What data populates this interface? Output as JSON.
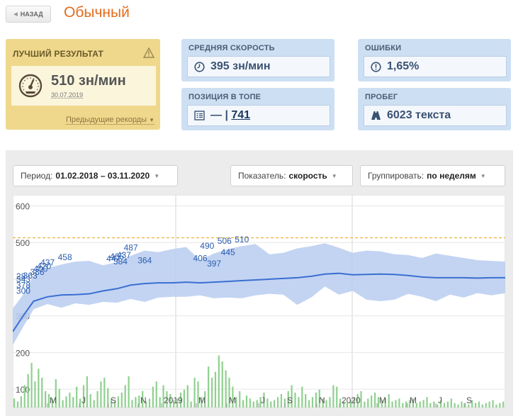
{
  "header": {
    "back_label": "НАЗАД",
    "title": "Обычный"
  },
  "best": {
    "title": "ЛУЧШИЙ РЕЗУЛЬТАТ",
    "value": "510 зн/мин",
    "date": "30.07.2019",
    "prev_link": "Предыдущие рекорды",
    "icon": "speedometer-icon",
    "warn_icon": "warning-icon"
  },
  "stats": {
    "avg_speed": {
      "title": "СРЕДНЯЯ СКОРОСТЬ",
      "value": "395 зн/мин",
      "icon": "clock-icon"
    },
    "errors": {
      "title": "ОШИБКИ",
      "value": "1,65%",
      "icon": "alert-circle-icon"
    },
    "rank": {
      "title": "ПОЗИЦИЯ В ТОПЕ",
      "prefix": "— |",
      "value": "741",
      "icon": "list-icon"
    },
    "mileage": {
      "title": "ПРОБЕГ",
      "value": "6023 текста",
      "icon": "road-icon"
    }
  },
  "controls": {
    "period_label": "Период:",
    "period_value": "01.02.2018 – 03.11.2020",
    "metric_label": "Показатель:",
    "metric_value": "скорость",
    "group_label": "Группировать:",
    "group_value": "по неделям"
  },
  "colors": {
    "accent": "#e36c1e",
    "line": "#3a6fd0",
    "band": "#b9cdf0",
    "bars": "#8fd08f",
    "record": "#e9b23e"
  },
  "chart_data": {
    "type": "line",
    "y_ticks": [
      100,
      200,
      300,
      400,
      500,
      600
    ],
    "y_tick_labels": [
      "100",
      "200",
      "300",
      "",
      "500",
      "600"
    ],
    "ylim": [
      50,
      630
    ],
    "x_ticks": [
      "M",
      "J",
      "S",
      "N",
      "2019",
      "M",
      "M",
      "J",
      "S",
      "N",
      "2020",
      "M",
      "M",
      "J",
      "S"
    ],
    "record_line": 513,
    "series": [
      {
        "x": [
          0,
          3,
          6,
          10,
          14,
          18,
          22,
          26,
          30,
          34,
          38,
          42,
          46,
          50,
          54,
          58,
          62,
          66,
          70,
          74,
          78,
          82,
          86,
          90,
          94,
          98,
          102,
          106,
          110,
          114,
          118,
          122,
          126,
          130,
          134,
          138,
          142
        ],
        "values": [
          257,
          300,
          340,
          352,
          357,
          358,
          360,
          368,
          374,
          384,
          388,
          390,
          390,
          392,
          390,
          392,
          394,
          396,
          398,
          400,
          402,
          404,
          408,
          414,
          416,
          412,
          413,
          414,
          413,
          410,
          406,
          404,
          404,
          404,
          403,
          404,
          404
        ]
      }
    ],
    "band_upper": [
      320,
      358,
      410,
      430,
      440,
      448,
      450,
      438,
      446,
      464,
      478,
      474,
      482,
      488,
      452,
      470,
      482,
      490,
      496,
      468,
      472,
      484,
      490,
      498,
      486,
      472,
      478,
      476,
      468,
      466,
      458,
      470,
      464,
      458,
      452,
      450,
      448
    ],
    "band_lower": [
      220,
      270,
      318,
      332,
      322,
      334,
      330,
      338,
      336,
      346,
      338,
      350,
      352,
      352,
      356,
      348,
      350,
      348,
      356,
      360,
      358,
      330,
      350,
      380,
      358,
      368,
      344,
      340,
      344,
      360,
      352,
      340,
      358,
      350,
      362,
      356,
      362
    ],
    "annotations": [
      {
        "x": 1,
        "y": 376,
        "label": "378"
      },
      {
        "x": 1,
        "y": 392,
        "label": "343"
      },
      {
        "x": 3,
        "y": 402,
        "label": "363"
      },
      {
        "x": 5,
        "y": 412,
        "label": "386"
      },
      {
        "x": 6,
        "y": 420,
        "label": "400"
      },
      {
        "x": 7,
        "y": 428,
        "label": "420"
      },
      {
        "x": 8,
        "y": 438,
        "label": "437"
      },
      {
        "x": 13,
        "y": 452,
        "label": "458"
      },
      {
        "x": 27,
        "y": 448,
        "label": "447"
      },
      {
        "x": 28,
        "y": 454,
        "label": "465"
      },
      {
        "x": 30,
        "y": 458,
        "label": "437"
      },
      {
        "x": 29,
        "y": 441,
        "label": "384"
      },
      {
        "x": 32,
        "y": 478,
        "label": "487"
      },
      {
        "x": 36,
        "y": 443,
        "label": "364"
      },
      {
        "x": 52,
        "y": 449,
        "label": "406"
      },
      {
        "x": 54,
        "y": 483,
        "label": "490"
      },
      {
        "x": 56,
        "y": 435,
        "label": "397"
      },
      {
        "x": 59,
        "y": 497,
        "label": "506"
      },
      {
        "x": 60,
        "y": 466,
        "label": "445"
      },
      {
        "x": 64,
        "y": 500,
        "label": "510"
      },
      {
        "x": 1,
        "y": 400,
        "label": "28"
      },
      {
        "x": 1,
        "y": 360,
        "label": "300"
      }
    ],
    "bars": [
      12,
      8,
      15,
      30,
      45,
      60,
      35,
      52,
      40,
      22,
      18,
      12,
      38,
      25,
      10,
      15,
      20,
      14,
      28,
      12,
      30,
      42,
      18,
      10,
      22,
      35,
      40,
      26,
      12,
      8,
      15,
      20,
      30,
      42,
      10,
      14,
      16,
      22,
      8,
      12,
      28,
      35,
      14,
      30,
      22,
      18,
      10,
      12,
      20,
      24,
      30,
      8,
      40,
      35,
      14,
      22,
      55,
      40,
      48,
      70,
      62,
      50,
      40,
      28,
      14,
      22,
      10,
      16,
      12,
      8,
      10,
      14,
      20,
      12,
      8,
      10,
      14,
      18,
      12,
      22,
      30,
      20,
      14,
      28,
      18,
      10,
      14,
      20,
      24,
      12,
      10,
      14,
      30,
      28,
      12,
      8,
      6,
      10,
      14,
      18,
      22,
      8,
      12,
      16,
      20,
      14,
      10,
      12,
      18,
      8,
      10,
      12,
      6,
      8,
      10,
      12,
      6,
      8,
      10,
      14,
      6,
      8,
      4,
      10,
      6,
      8,
      12,
      6,
      4,
      8,
      6,
      4,
      10,
      6,
      8,
      4,
      6,
      8,
      10,
      4,
      6,
      8
    ]
  }
}
